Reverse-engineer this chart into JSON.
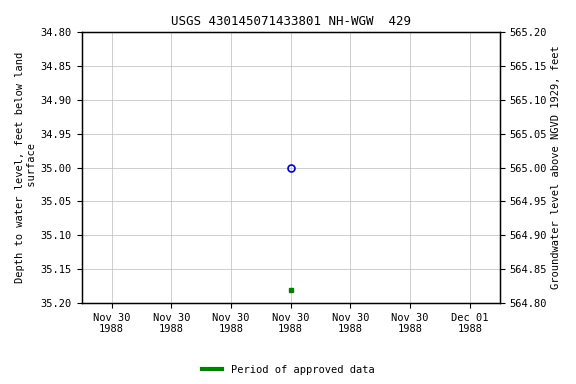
{
  "title": "USGS 430145071433801 NH-WGW  429",
  "left_ylabel": "Depth to water level, feet below land\n surface",
  "right_ylabel": "Groundwater level above NGVD 1929, feet",
  "ylim_left_top": 34.8,
  "ylim_left_bottom": 35.2,
  "ylim_right_top": 565.2,
  "ylim_right_bottom": 564.8,
  "yticks_left": [
    34.8,
    34.85,
    34.9,
    34.95,
    35.0,
    35.05,
    35.1,
    35.15,
    35.2
  ],
  "yticks_right": [
    565.2,
    565.15,
    565.1,
    565.05,
    565.0,
    564.95,
    564.9,
    564.85,
    564.8
  ],
  "point_blue_x": 3,
  "point_blue_value": 35.0,
  "point_green_x": 3,
  "point_green_value": 35.18,
  "blue_color": "#0000cc",
  "green_color": "#008000",
  "bg_color": "#ffffff",
  "grid_color": "#bbbbbb",
  "legend_label": "Period of approved data",
  "font_family": "monospace",
  "title_fontsize": 9,
  "axis_label_fontsize": 7.5,
  "tick_fontsize": 7.5,
  "x_tick_labels": [
    "Nov 30\n1988",
    "Nov 30\n1988",
    "Nov 30\n1988",
    "Nov 30\n1988",
    "Nov 30\n1988",
    "Nov 30\n1988",
    "Dec 01\n1988"
  ],
  "x_tick_positions": [
    0,
    1,
    2,
    3,
    4,
    5,
    6
  ],
  "xlim": [
    -0.5,
    6.5
  ]
}
